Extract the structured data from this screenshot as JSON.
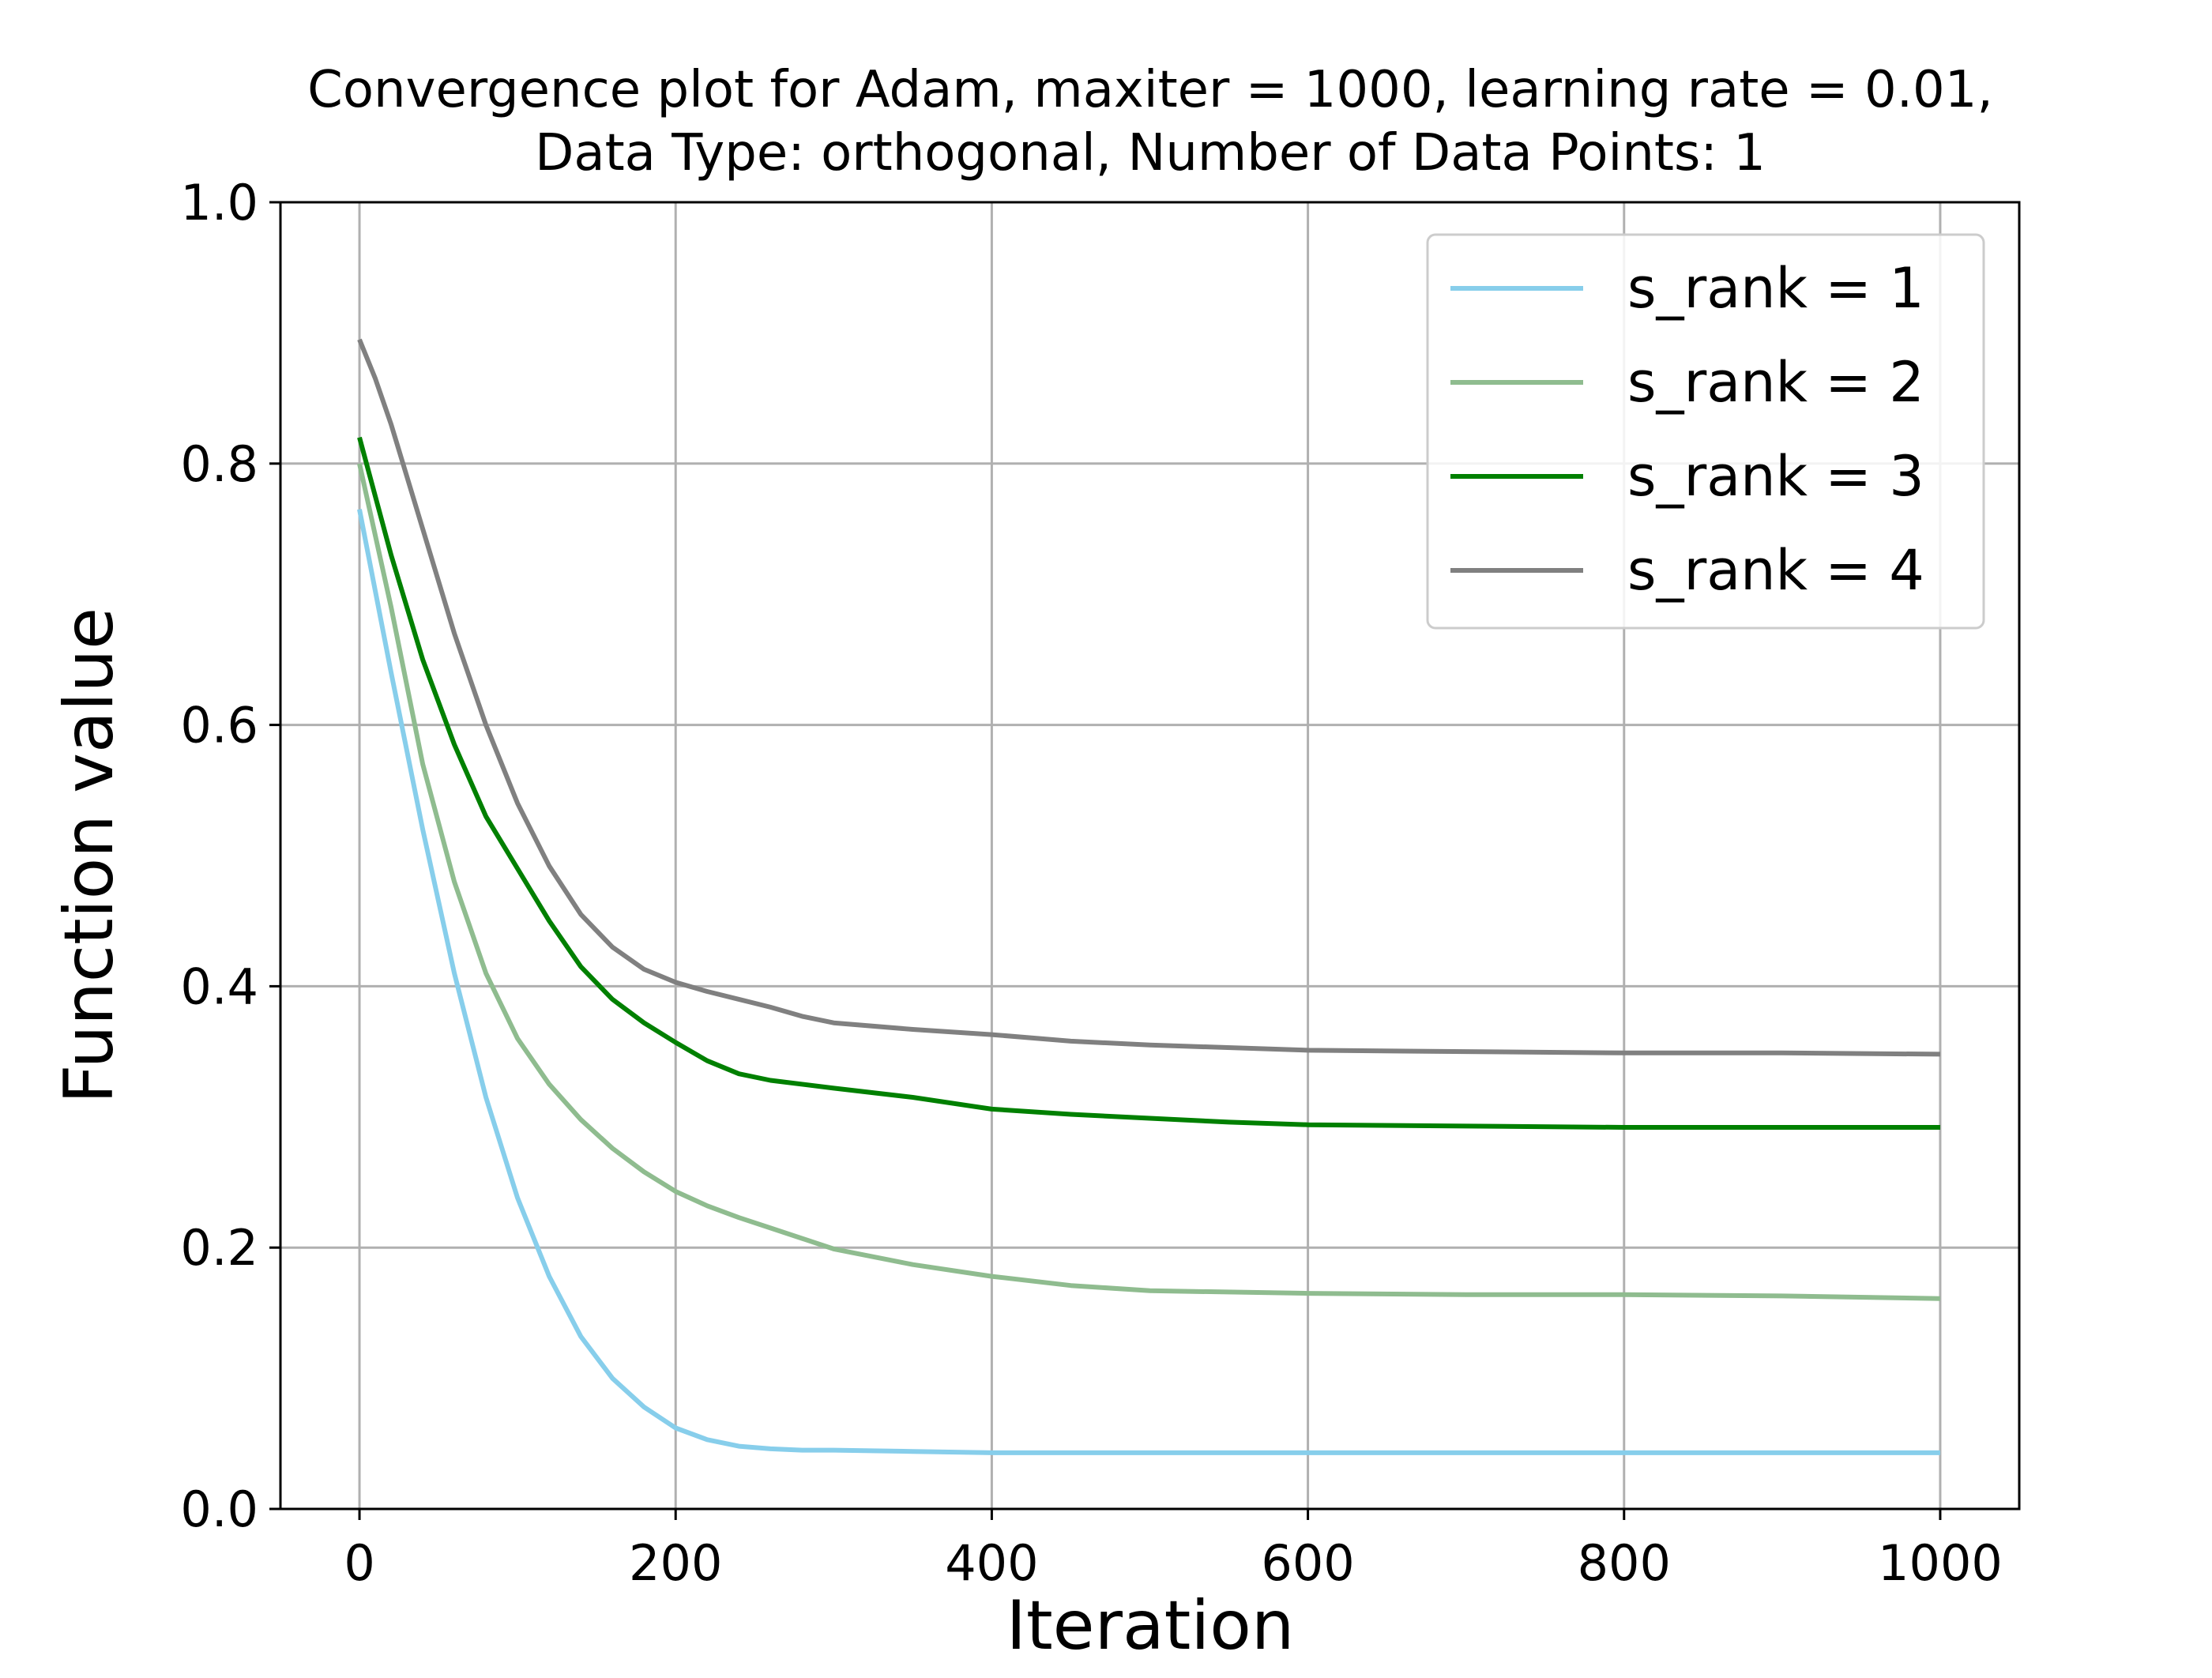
{
  "chart_data": {
    "type": "line",
    "title": "Convergence plot for Adam, maxiter = 1000, learning rate = 0.01,",
    "subtitle": "Data Type: orthogonal, Number of Data Points: 1",
    "xlabel": "Iteration",
    "ylabel": "Function value",
    "xlim": [
      -50,
      1050
    ],
    "ylim": [
      0.0,
      1.0
    ],
    "xticks": [
      0,
      200,
      400,
      600,
      800,
      1000
    ],
    "xtick_labels": [
      "0",
      "200",
      "400",
      "600",
      "800",
      "1000"
    ],
    "yticks": [
      0.0,
      0.2,
      0.4,
      0.6,
      0.8,
      1.0
    ],
    "ytick_labels": [
      "0.0",
      "0.2",
      "0.4",
      "0.6",
      "0.8",
      "1.0"
    ],
    "grid": true,
    "legend_position": "top-right",
    "series": [
      {
        "name": "s_rank = 1",
        "color": "#87ceeb",
        "x": [
          0,
          20,
          40,
          60,
          80,
          100,
          120,
          140,
          160,
          180,
          200,
          220,
          240,
          260,
          280,
          300,
          350,
          400,
          500,
          600,
          700,
          800,
          900,
          1000
        ],
        "y": [
          0.765,
          0.64,
          0.52,
          0.41,
          0.315,
          0.238,
          0.178,
          0.132,
          0.1,
          0.078,
          0.062,
          0.053,
          0.048,
          0.046,
          0.045,
          0.045,
          0.044,
          0.043,
          0.043,
          0.043,
          0.043,
          0.043,
          0.043,
          0.043
        ]
      },
      {
        "name": "s_rank = 2",
        "color": "#8fbc8f",
        "x": [
          0,
          20,
          40,
          60,
          80,
          100,
          120,
          140,
          160,
          180,
          200,
          220,
          240,
          260,
          280,
          300,
          350,
          400,
          450,
          500,
          600,
          700,
          800,
          900,
          1000
        ],
        "y": [
          0.8,
          0.69,
          0.57,
          0.48,
          0.41,
          0.36,
          0.325,
          0.298,
          0.276,
          0.258,
          0.243,
          0.232,
          0.223,
          0.215,
          0.207,
          0.199,
          0.187,
          0.178,
          0.171,
          0.167,
          0.165,
          0.164,
          0.164,
          0.163,
          0.161
        ]
      },
      {
        "name": "s_rank = 3",
        "color": "#008000",
        "x": [
          0,
          20,
          40,
          60,
          80,
          100,
          120,
          140,
          160,
          180,
          200,
          220,
          240,
          260,
          300,
          350,
          400,
          450,
          500,
          550,
          600,
          700,
          800,
          900,
          1000
        ],
        "y": [
          0.82,
          0.73,
          0.65,
          0.585,
          0.53,
          0.49,
          0.45,
          0.415,
          0.39,
          0.372,
          0.357,
          0.343,
          0.333,
          0.328,
          0.322,
          0.315,
          0.306,
          0.302,
          0.299,
          0.296,
          0.294,
          0.293,
          0.292,
          0.292,
          0.292
        ]
      },
      {
        "name": "s_rank = 4",
        "color": "#808080",
        "x": [
          0,
          10,
          20,
          40,
          60,
          80,
          100,
          120,
          140,
          160,
          180,
          200,
          220,
          240,
          260,
          280,
          300,
          350,
          400,
          450,
          500,
          600,
          700,
          800,
          900,
          1000
        ],
        "y": [
          0.895,
          0.865,
          0.83,
          0.75,
          0.67,
          0.6,
          0.54,
          0.492,
          0.455,
          0.43,
          0.413,
          0.403,
          0.396,
          0.39,
          0.384,
          0.377,
          0.372,
          0.367,
          0.363,
          0.358,
          0.355,
          0.351,
          0.35,
          0.349,
          0.349,
          0.348
        ]
      }
    ]
  }
}
